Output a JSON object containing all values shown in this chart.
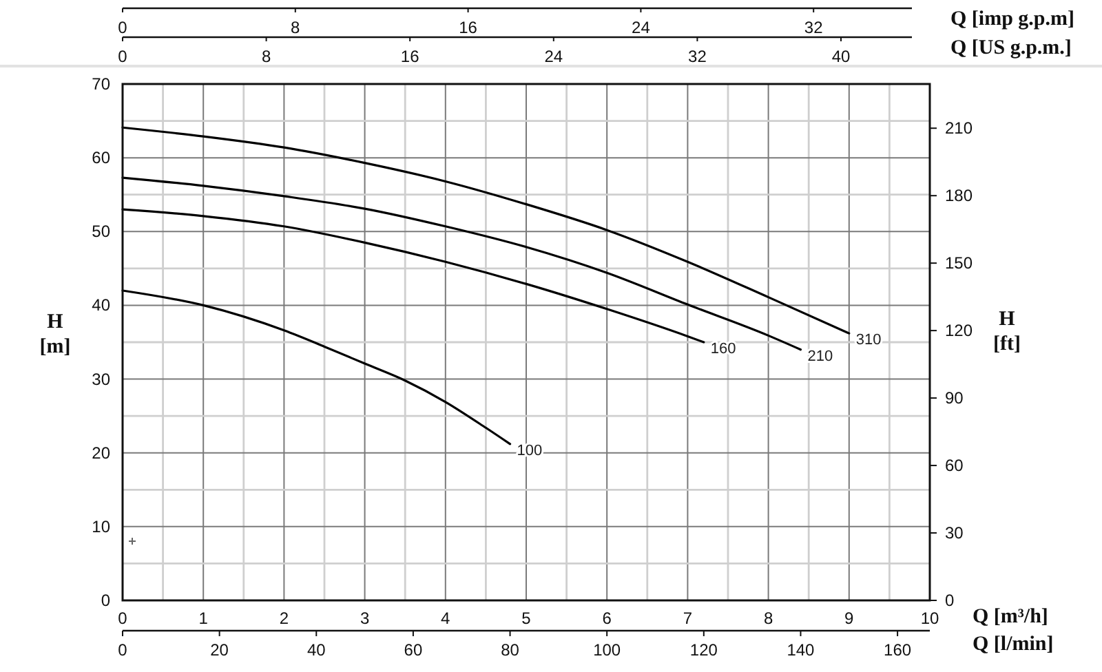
{
  "chart_data": {
    "type": "line",
    "xlabel": "Q [m³/h]",
    "x2label": "Q [l/min]",
    "ylabel": "H [m]",
    "y2label": "H [ft]",
    "xlim": [
      0,
      10
    ],
    "xticks": [
      0,
      {
        "value": 0.5,
        "label": null
      },
      1,
      {
        "value": 1.5,
        "label": null
      },
      2,
      {
        "value": 2.5,
        "label": null
      },
      3,
      {
        "value": 3.5,
        "label": null
      },
      4,
      {
        "value": 4.5,
        "label": null
      },
      5,
      {
        "value": 5.5,
        "label": null
      },
      6,
      {
        "value": 6.5,
        "label": null
      },
      7,
      {
        "value": 7.5,
        "label": null
      },
      8,
      {
        "value": 8.5,
        "label": null
      },
      9,
      {
        "value": 9.5,
        "label": null
      },
      10
    ],
    "x2lim": [
      0,
      166.67
    ],
    "x2ticks": [
      0,
      20,
      40,
      60,
      80,
      100,
      120,
      140,
      160
    ],
    "ylim": [
      0,
      70
    ],
    "yticks": [
      0,
      {
        "value": 5,
        "label": null
      },
      10,
      {
        "value": 15,
        "label": null
      },
      20,
      {
        "value": 25,
        "label": null
      },
      30,
      {
        "value": 35,
        "label": null
      },
      40,
      {
        "value": 45,
        "label": null
      },
      50,
      {
        "value": 55,
        "label": null
      },
      60,
      {
        "value": 65,
        "label": null
      },
      70
    ],
    "y2lim": [
      0,
      229.66
    ],
    "y2ticks": [
      0,
      30,
      60,
      90,
      120,
      150,
      180,
      210
    ],
    "series": [
      {
        "name": "100",
        "color": "#000000",
        "x": [
          0,
          1,
          2,
          2.5,
          3,
          3.5,
          4,
          4.5,
          4.8
        ],
        "values": [
          42.0,
          40.0,
          36.6,
          34.4,
          32.1,
          29.8,
          26.9,
          23.4,
          21.2
        ]
      },
      {
        "name": "160",
        "color": "#000000",
        "x": [
          0,
          1,
          2,
          3,
          4,
          5,
          6,
          7,
          7.2
        ],
        "values": [
          53.0,
          52.1,
          50.7,
          48.5,
          45.9,
          42.9,
          39.5,
          35.8,
          35.0
        ]
      },
      {
        "name": "210",
        "color": "#000000",
        "x": [
          0,
          1,
          2,
          3,
          4,
          5,
          6,
          7,
          8,
          8.4
        ],
        "values": [
          57.3,
          56.2,
          54.8,
          53.1,
          50.7,
          47.9,
          44.4,
          40.1,
          35.9,
          34.0
        ]
      },
      {
        "name": "310",
        "color": "#000000",
        "x": [
          0,
          1,
          2,
          3,
          4,
          5,
          6,
          7,
          8,
          9
        ],
        "values": [
          64.1,
          62.9,
          61.4,
          59.3,
          56.8,
          53.7,
          50.2,
          45.9,
          41.1,
          36.2
        ]
      }
    ],
    "annotations": [
      "Q [imp g.p.m]",
      "0",
      "8",
      "16",
      "24",
      "32",
      "Q [US g.p.m.]",
      "0",
      "8",
      "16",
      "24",
      "32",
      "40"
    ],
    "grid": true
  }
}
